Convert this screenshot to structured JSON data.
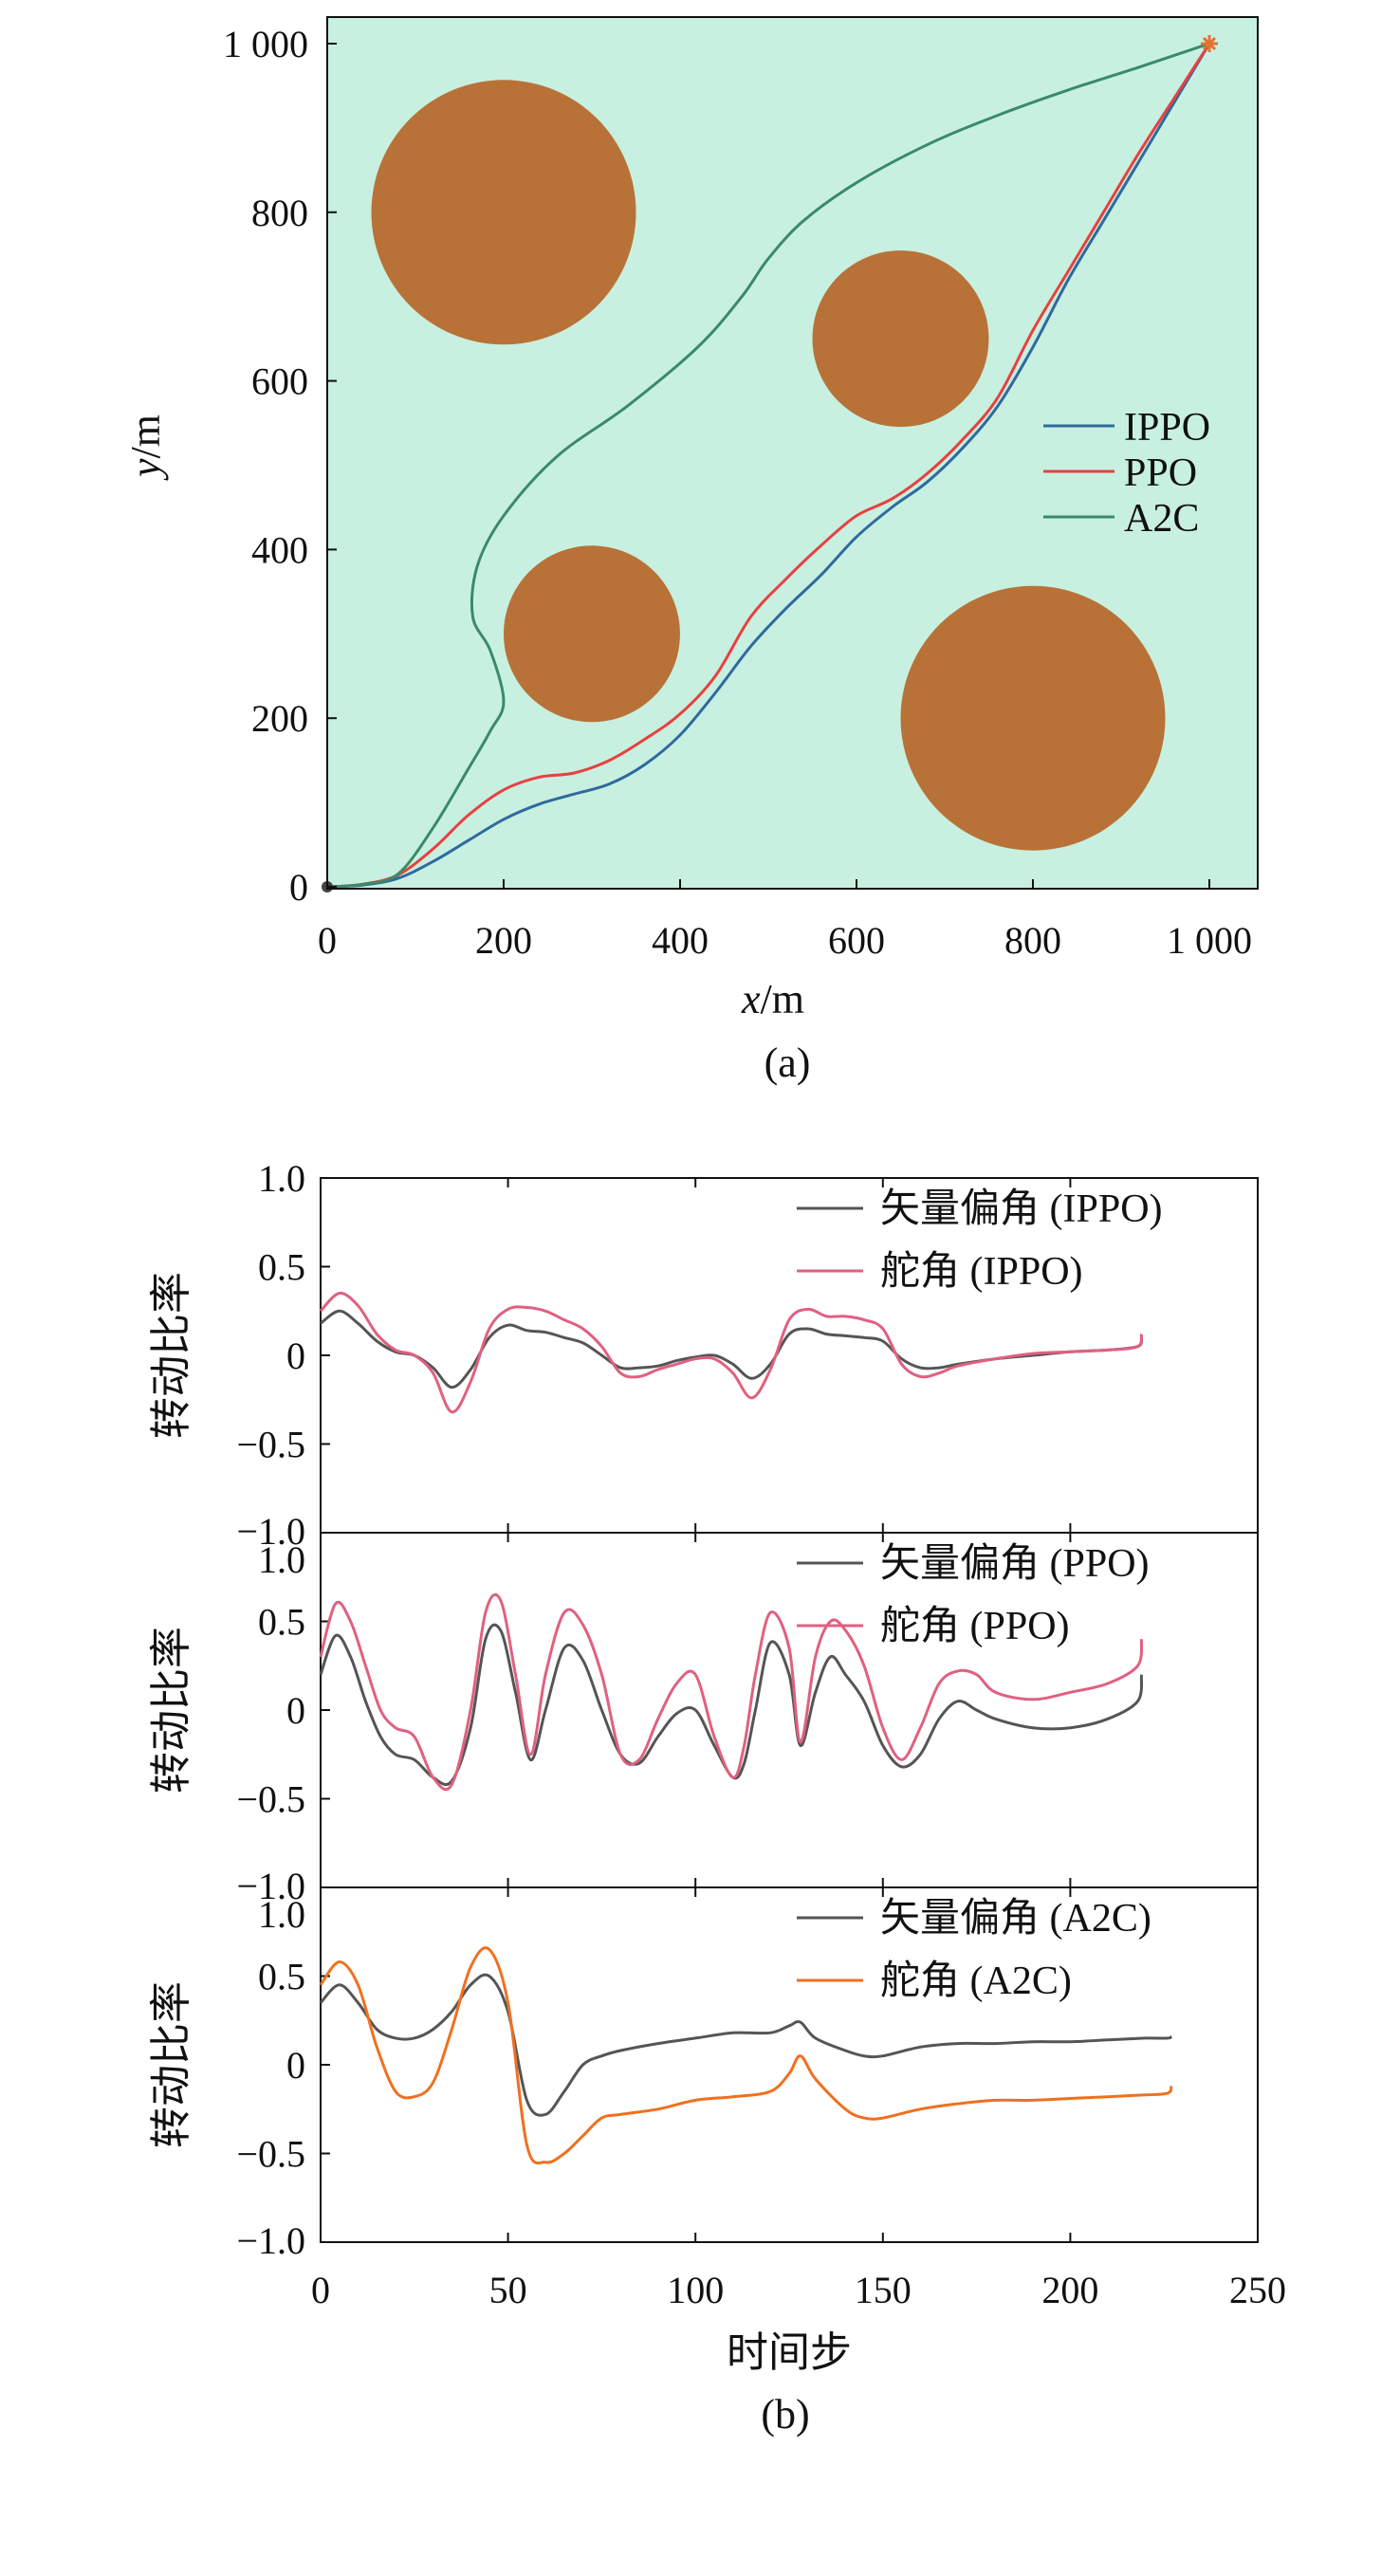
{
  "chart_data": [
    {
      "type": "line",
      "panel": "a",
      "caption": "(a)",
      "xlabel_var": "x",
      "xlabel_unit": "/m",
      "ylabel_var": "y",
      "ylabel_unit": "/m",
      "xlim": [
        0,
        1050
      ],
      "ylim": [
        0,
        1000
      ],
      "xticks": [
        0,
        200,
        400,
        600,
        800,
        1000
      ],
      "xtick_labels": [
        "0",
        "200",
        "400",
        "600",
        "800",
        "1 000"
      ],
      "yticks": [
        0,
        200,
        400,
        600,
        800,
        1000
      ],
      "ytick_labels": [
        "0",
        "200",
        "400",
        "600",
        "800",
        "1 000"
      ],
      "colors": {
        "background": "#c8f0e0",
        "obstacle": "#b87238",
        "IPPO": "#2e6a9e",
        "PPO": "#e84040",
        "A2C": "#3a8a68",
        "goal": "#e87030"
      },
      "obstacles": [
        {
          "cx": 200,
          "cy": 800,
          "r": 150
        },
        {
          "cx": 650,
          "cy": 650,
          "r": 100
        },
        {
          "cx": 300,
          "cy": 300,
          "r": 100
        },
        {
          "cx": 800,
          "cy": 200,
          "r": 150
        }
      ],
      "start": [
        0,
        0
      ],
      "goal": [
        1000,
        1000
      ],
      "series": [
        {
          "name": "IPPO",
          "x": [
            0,
            40,
            80,
            120,
            160,
            200,
            240,
            280,
            320,
            360,
            400,
            440,
            480,
            520,
            560,
            600,
            640,
            680,
            720,
            760,
            800,
            840,
            880,
            920,
            960,
            1000
          ],
          "y": [
            0,
            2,
            10,
            30,
            55,
            80,
            98,
            110,
            122,
            145,
            180,
            230,
            285,
            330,
            370,
            415,
            450,
            480,
            520,
            570,
            640,
            720,
            790,
            860,
            930,
            1000
          ]
        },
        {
          "name": "PPO",
          "x": [
            0,
            40,
            80,
            120,
            160,
            200,
            240,
            280,
            320,
            360,
            400,
            440,
            480,
            520,
            560,
            600,
            640,
            680,
            720,
            760,
            800,
            840,
            880,
            920,
            960,
            1000
          ],
          "y": [
            0,
            3,
            14,
            45,
            85,
            115,
            130,
            135,
            150,
            175,
            205,
            250,
            320,
            365,
            405,
            440,
            460,
            490,
            530,
            580,
            660,
            730,
            800,
            870,
            935,
            1000
          ]
        },
        {
          "name": "A2C",
          "x": [
            0,
            40,
            80,
            120,
            160,
            185,
            200,
            185,
            165,
            170,
            200,
            260,
            340,
            420,
            470,
            500,
            540,
            600,
            680,
            760,
            840,
            920,
            1000
          ],
          "y": [
            0,
            3,
            15,
            70,
            140,
            185,
            220,
            280,
            320,
            380,
            440,
            510,
            570,
            640,
            700,
            745,
            790,
            835,
            880,
            915,
            945,
            972,
            1000
          ]
        }
      ]
    },
    {
      "type": "line",
      "panel": "b",
      "caption": "(b)",
      "xlabel": "时间步",
      "ylabel": "转动比率",
      "xlim": [
        0,
        250
      ],
      "ylim": [
        -1.0,
        1.0
      ],
      "xticks": [
        0,
        50,
        100,
        150,
        200,
        250
      ],
      "xtick_labels": [
        "0",
        "50",
        "100",
        "150",
        "200",
        "250"
      ],
      "yticks": [
        -1.0,
        -0.5,
        0,
        0.5,
        1.0
      ],
      "ytick_labels": [
        "−1.0",
        "−0.5",
        "0",
        "0.5",
        "1.0"
      ],
      "subplots": [
        {
          "name": "IPPO",
          "series": [
            {
              "name": "矢量偏角 (IPPO)",
              "color": "#555555",
              "x": [
                0,
                5,
                10,
                15,
                20,
                25,
                30,
                35,
                40,
                45,
                50,
                55,
                60,
                65,
                70,
                75,
                80,
                85,
                90,
                95,
                100,
                105,
                110,
                115,
                120,
                125,
                130,
                135,
                140,
                145,
                150,
                155,
                160,
                165,
                170,
                180,
                190,
                200,
                210,
                218,
                219
              ],
              "y": [
                0.18,
                0.25,
                0.18,
                0.08,
                0.02,
                0.0,
                -0.07,
                -0.18,
                -0.08,
                0.1,
                0.17,
                0.14,
                0.13,
                0.1,
                0.07,
                0.0,
                -0.07,
                -0.07,
                -0.06,
                -0.03,
                -0.01,
                0.0,
                -0.05,
                -0.13,
                -0.05,
                0.12,
                0.15,
                0.12,
                0.11,
                0.1,
                0.08,
                -0.02,
                -0.07,
                -0.07,
                -0.05,
                -0.02,
                0.0,
                0.02,
                0.03,
                0.05,
                0.1
              ]
            },
            {
              "name": "舵角 (IPPO)",
              "color": "#e06080",
              "x": [
                0,
                5,
                10,
                15,
                20,
                25,
                30,
                35,
                40,
                45,
                50,
                55,
                60,
                65,
                70,
                75,
                80,
                85,
                90,
                95,
                100,
                105,
                110,
                115,
                120,
                125,
                130,
                135,
                140,
                145,
                150,
                155,
                160,
                165,
                170,
                180,
                190,
                200,
                210,
                218,
                219
              ],
              "y": [
                0.25,
                0.35,
                0.28,
                0.12,
                0.03,
                0.0,
                -0.1,
                -0.32,
                -0.15,
                0.15,
                0.26,
                0.27,
                0.25,
                0.2,
                0.15,
                0.05,
                -0.1,
                -0.12,
                -0.08,
                -0.05,
                -0.02,
                -0.02,
                -0.1,
                -0.24,
                -0.08,
                0.2,
                0.26,
                0.22,
                0.22,
                0.2,
                0.15,
                -0.05,
                -0.12,
                -0.1,
                -0.06,
                -0.02,
                0.01,
                0.02,
                0.03,
                0.05,
                0.12
              ]
            }
          ]
        },
        {
          "name": "PPO",
          "series": [
            {
              "name": "矢量偏角 (PPO)",
              "color": "#555555",
              "x": [
                0,
                4,
                8,
                12,
                16,
                20,
                25,
                30,
                35,
                40,
                44,
                48,
                52,
                56,
                60,
                65,
                70,
                75,
                80,
                85,
                90,
                95,
                100,
                105,
                110,
                113,
                116,
                120,
                125,
                128,
                132,
                136,
                140,
                145,
                150,
                155,
                160,
                165,
                170,
                175,
                180,
                190,
                200,
                210,
                218,
                219
              ],
              "y": [
                0.2,
                0.42,
                0.3,
                0.05,
                -0.15,
                -0.25,
                -0.28,
                -0.38,
                -0.4,
                -0.1,
                0.4,
                0.45,
                0.1,
                -0.28,
                0.0,
                0.35,
                0.28,
                0.0,
                -0.25,
                -0.3,
                -0.15,
                -0.02,
                0.0,
                -0.2,
                -0.38,
                -0.3,
                0.0,
                0.38,
                0.2,
                -0.2,
                0.1,
                0.3,
                0.2,
                0.05,
                -0.2,
                -0.32,
                -0.25,
                -0.05,
                0.05,
                0.0,
                -0.05,
                -0.1,
                -0.1,
                -0.05,
                0.05,
                0.2
              ]
            },
            {
              "name": "舵角 (PPO)",
              "color": "#e06080",
              "x": [
                0,
                4,
                8,
                12,
                16,
                20,
                25,
                30,
                35,
                40,
                44,
                48,
                52,
                56,
                60,
                65,
                70,
                75,
                80,
                85,
                90,
                95,
                100,
                105,
                110,
                113,
                116,
                120,
                125,
                128,
                132,
                136,
                140,
                145,
                150,
                155,
                160,
                165,
                170,
                175,
                180,
                190,
                200,
                210,
                218,
                219
              ],
              "y": [
                0.3,
                0.6,
                0.5,
                0.25,
                0.0,
                -0.1,
                -0.15,
                -0.38,
                -0.42,
                0.0,
                0.55,
                0.62,
                0.2,
                -0.25,
                0.2,
                0.55,
                0.48,
                0.2,
                -0.25,
                -0.28,
                -0.05,
                0.15,
                0.2,
                -0.15,
                -0.38,
                -0.2,
                0.2,
                0.55,
                0.35,
                -0.18,
                0.3,
                0.5,
                0.45,
                0.25,
                -0.1,
                -0.28,
                -0.1,
                0.15,
                0.22,
                0.2,
                0.1,
                0.06,
                0.1,
                0.15,
                0.25,
                0.4
              ]
            }
          ]
        },
        {
          "name": "A2C",
          "series": [
            {
              "name": "矢量偏角 (A2C)",
              "color": "#555555",
              "x": [
                0,
                5,
                10,
                15,
                20,
                25,
                30,
                35,
                40,
                45,
                50,
                55,
                60,
                65,
                70,
                75,
                80,
                90,
                100,
                110,
                120,
                125,
                128,
                132,
                140,
                145,
                150,
                160,
                170,
                180,
                190,
                200,
                210,
                220,
                226,
                227
              ],
              "y": [
                0.35,
                0.45,
                0.35,
                0.2,
                0.15,
                0.15,
                0.2,
                0.3,
                0.45,
                0.5,
                0.3,
                -0.2,
                -0.28,
                -0.15,
                0.0,
                0.05,
                0.08,
                0.12,
                0.15,
                0.18,
                0.18,
                0.22,
                0.24,
                0.15,
                0.08,
                0.05,
                0.05,
                0.1,
                0.12,
                0.12,
                0.13,
                0.13,
                0.14,
                0.15,
                0.15,
                0.16
              ]
            },
            {
              "name": "舵角 (A2C)",
              "color": "#f07020",
              "x": [
                0,
                5,
                10,
                15,
                20,
                25,
                30,
                35,
                40,
                45,
                50,
                55,
                60,
                65,
                70,
                75,
                80,
                90,
                100,
                110,
                120,
                125,
                128,
                132,
                140,
                145,
                150,
                160,
                170,
                180,
                190,
                200,
                210,
                220,
                226,
                227
              ],
              "y": [
                0.45,
                0.58,
                0.45,
                0.1,
                -0.15,
                -0.18,
                -0.1,
                0.2,
                0.55,
                0.65,
                0.35,
                -0.45,
                -0.55,
                -0.5,
                -0.4,
                -0.3,
                -0.28,
                -0.25,
                -0.2,
                -0.18,
                -0.15,
                -0.05,
                0.05,
                -0.08,
                -0.25,
                -0.3,
                -0.3,
                -0.25,
                -0.22,
                -0.2,
                -0.2,
                -0.19,
                -0.18,
                -0.17,
                -0.16,
                -0.12
              ]
            }
          ]
        }
      ]
    }
  ]
}
